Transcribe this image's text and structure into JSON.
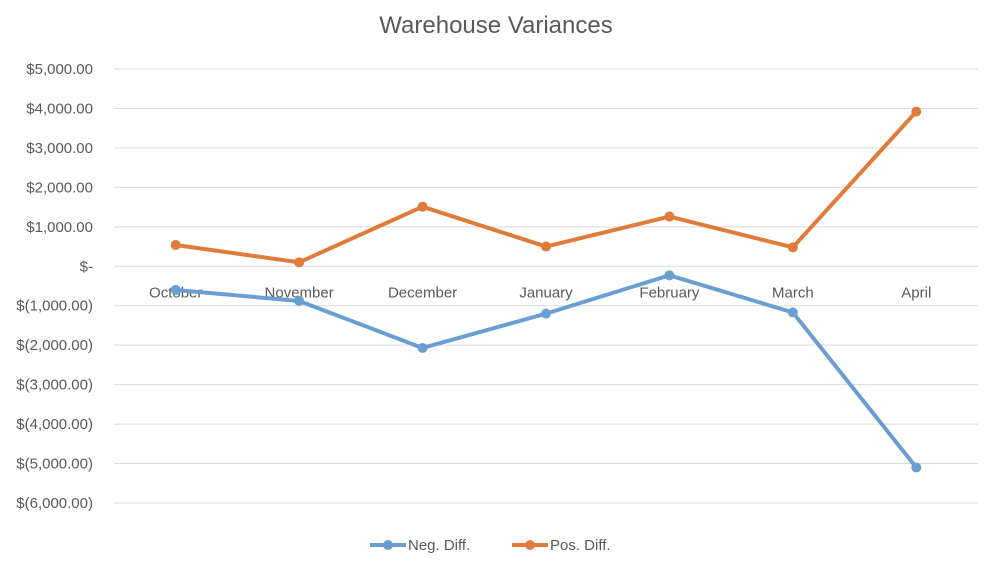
{
  "chart_data": {
    "type": "line",
    "title": "Warehouse Variances",
    "categories": [
      "October",
      "November",
      "December",
      "January",
      "February",
      "March",
      "April"
    ],
    "series": [
      {
        "name": "Neg. Diff.",
        "color": "#6a9ed3",
        "values": [
          -600,
          -880,
          -2070,
          -1200,
          -230,
          -1170,
          -5100
        ]
      },
      {
        "name": "Pos. Diff.",
        "color": "#e07b39",
        "values": [
          540,
          100,
          1510,
          500,
          1260,
          480,
          3920
        ]
      }
    ],
    "ylim": [
      -6000,
      5000
    ],
    "yticks": [
      5000,
      4000,
      3000,
      2000,
      1000,
      0,
      -1000,
      -2000,
      -3000,
      -4000,
      -5000,
      -6000
    ],
    "ytick_labels": [
      "$5,000.00",
      "$4,000.00",
      "$3,000.00",
      "$2,000.00",
      "$1,000.00",
      "$-",
      "$(1,000.00)",
      "$(2,000.00)",
      "$(3,000.00)",
      "$(4,000.00)",
      "$(5,000.00)",
      "$(6,000.00)"
    ],
    "grid": true,
    "legend": "bottom",
    "xlabel": "",
    "ylabel": ""
  }
}
